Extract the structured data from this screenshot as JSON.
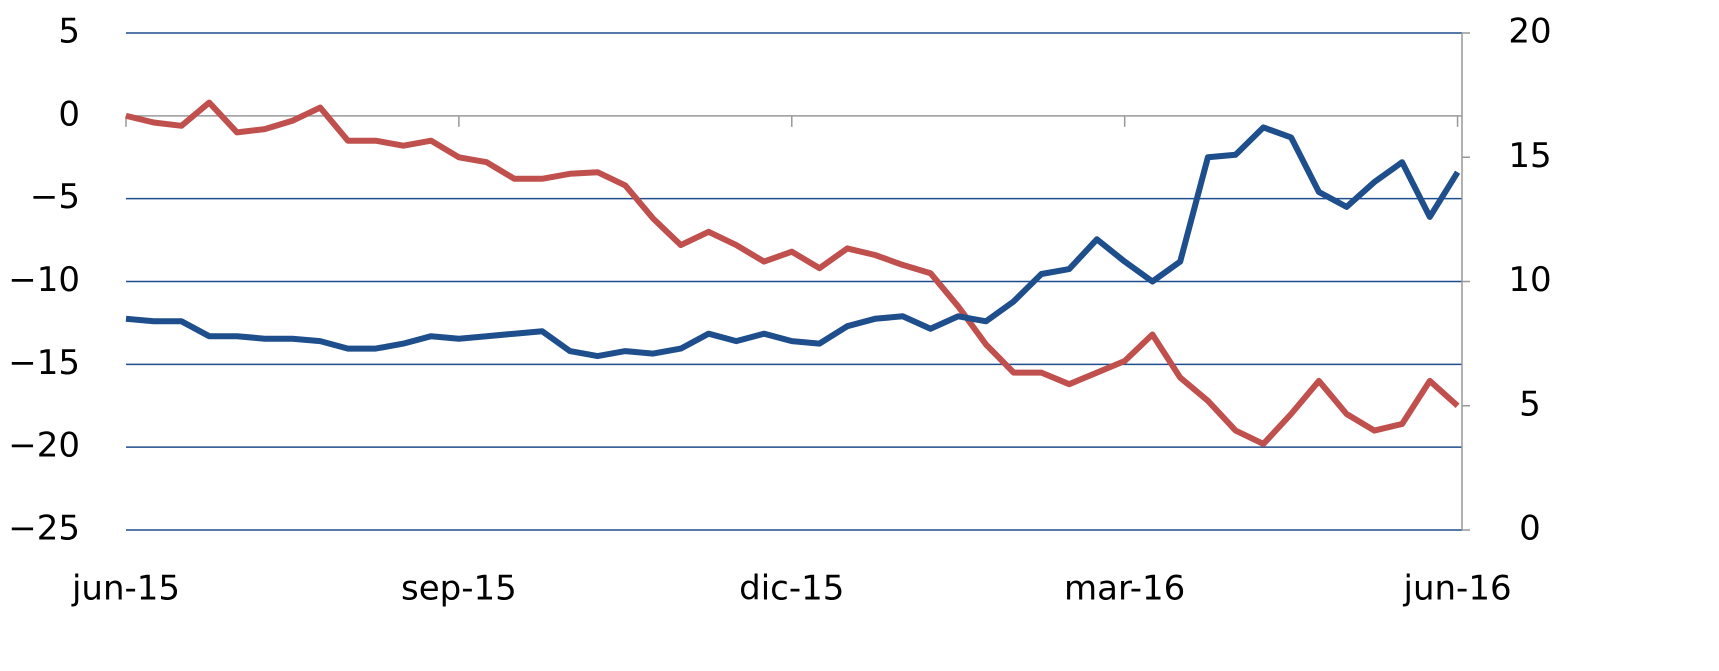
{
  "chart_data": {
    "type": "line",
    "x": [
      0,
      0.25,
      0.5,
      0.75,
      1,
      1.25,
      1.5,
      1.75,
      2,
      2.25,
      2.5,
      2.75,
      3,
      3.25,
      3.5,
      3.75,
      4,
      4.25,
      4.5,
      4.75,
      5,
      5.25,
      5.5,
      5.75,
      6,
      6.25,
      6.5,
      6.75,
      7,
      7.25,
      7.5,
      7.75,
      8,
      8.25,
      8.5,
      8.75,
      9,
      9.25,
      9.5,
      9.75,
      10,
      10.25,
      10.5,
      10.75,
      11,
      11.25,
      11.5,
      11.75,
      12
    ],
    "xlim": [
      0,
      12.04
    ],
    "xticks": [
      {
        "value": 0,
        "label": "jun-15"
      },
      {
        "value": 3,
        "label": "sep-15"
      },
      {
        "value": 6,
        "label": "dic-15"
      },
      {
        "value": 9,
        "label": "mar-16"
      },
      {
        "value": 12,
        "label": "jun-16"
      }
    ],
    "ylim": [
      -25,
      5
    ],
    "yticks": [
      {
        "value": -25,
        "label": "−25"
      },
      {
        "value": -20,
        "label": "−20"
      },
      {
        "value": -15,
        "label": "−15"
      },
      {
        "value": -10,
        "label": "−10"
      },
      {
        "value": -5,
        "label": "−5"
      },
      0,
      5
    ],
    "y2lim": [
      0,
      20
    ],
    "y2ticks": [
      0,
      5,
      10,
      15,
      20
    ],
    "grid": true,
    "series": [
      {
        "color": "#c0504d",
        "values": [
          0,
          -0.4,
          -0.6,
          0.8,
          -1.0,
          -0.8,
          -0.3,
          0.5,
          -1.5,
          -1.5,
          -1.8,
          -1.5,
          -2.5,
          -2.8,
          -3.8,
          -3.8,
          -3.5,
          -3.4,
          -4.2,
          -6.2,
          -7.8,
          -7.0,
          -7.8,
          -8.8,
          -8.2,
          -9.2,
          -8.0,
          -8.4,
          -9.0,
          -9.5,
          -11.5,
          -13.8,
          -15.5,
          -15.5,
          -16.2,
          -15.5,
          -14.8,
          -13.2,
          -15.8,
          -17.2,
          -19.0,
          -19.8,
          -18.0,
          -16.0,
          -18.0,
          -19.0,
          -18.6,
          -16.0,
          -17.5
        ]
      },
      {
        "color": "#1f4e8c",
        "axis": "y2",
        "values": [
          8.5,
          8.4,
          8.4,
          7.8,
          7.8,
          7.7,
          7.7,
          7.6,
          7.3,
          7.3,
          7.5,
          7.8,
          7.7,
          7.8,
          7.9,
          8.0,
          7.2,
          7.0,
          7.2,
          7.1,
          7.3,
          7.9,
          7.6,
          7.9,
          7.6,
          7.5,
          8.2,
          8.5,
          8.6,
          8.1,
          8.6,
          8.4,
          9.2,
          10.3,
          10.5,
          11.7,
          10.8,
          10.0,
          10.8,
          15.0,
          15.1,
          16.2,
          15.8,
          13.6,
          13.0,
          14.0,
          14.8,
          12.6,
          14.4
        ]
      }
    ]
  }
}
